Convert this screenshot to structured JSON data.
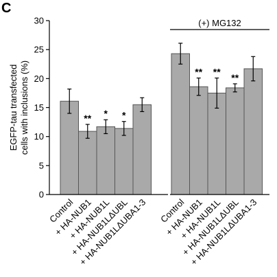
{
  "panel_label": "C",
  "chart_data": {
    "type": "bar",
    "title": "",
    "ylabel": [
      "EGFP-tau transfected",
      "cells with inclusions (%)"
    ],
    "xlabel": "",
    "ylim": [
      0,
      30
    ],
    "yticks": [
      0,
      5,
      10,
      15,
      20,
      25,
      30
    ],
    "grid": false,
    "groups": [
      {
        "label": "",
        "categories": [
          "Control",
          "+ HA-NUB1",
          "+ HA-NUB1L",
          "+ HA-NUB1LΔUBL",
          "+ HA-NUB1LΔUBA1-3"
        ],
        "values": [
          16.1,
          10.9,
          11.7,
          11.4,
          15.5
        ],
        "errors": [
          2.1,
          1.2,
          1.2,
          1.2,
          1.2
        ],
        "significance": [
          "",
          "**",
          "*",
          "*",
          ""
        ]
      },
      {
        "label": "(+) MG132",
        "categories": [
          "Control",
          "+ HA-NUB1",
          "+ HA-NUB1L",
          "+ HA-NUB1LΔUBL",
          "+ HA-NUB1LΔUBA1-3"
        ],
        "values": [
          24.3,
          18.6,
          17.5,
          18.4,
          21.7
        ],
        "errors": [
          1.8,
          1.5,
          2.6,
          0.7,
          2.1
        ],
        "significance": [
          "",
          "**",
          "**",
          "**",
          ""
        ]
      }
    ]
  }
}
